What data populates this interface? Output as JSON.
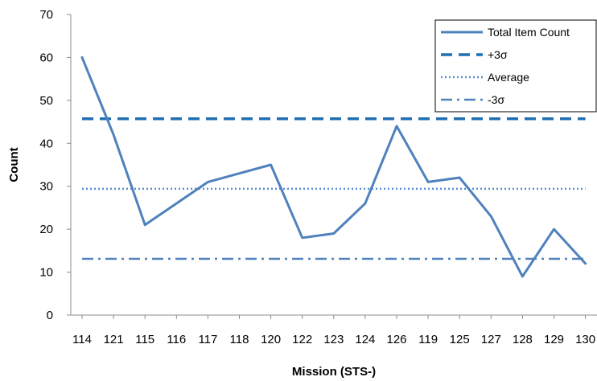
{
  "chart_data": {
    "type": "line",
    "title": "",
    "xlabel": "Mission (STS-)",
    "ylabel": "Count",
    "categories": [
      "114",
      "121",
      "115",
      "116",
      "117",
      "118",
      "120",
      "122",
      "123",
      "124",
      "126",
      "119",
      "125",
      "127",
      "128",
      "129",
      "130"
    ],
    "ylim": [
      0,
      70
    ],
    "yticks": [
      0,
      10,
      20,
      30,
      40,
      50,
      60,
      70
    ],
    "grid": false,
    "legend": "top-right",
    "series": [
      {
        "name": "Total Item Count",
        "style": "solid",
        "color": "#4f81bd",
        "values": [
          60,
          42,
          21,
          26,
          31,
          33,
          35,
          18,
          19,
          26,
          44,
          31,
          32,
          23,
          9,
          20,
          12
        ]
      },
      {
        "name": "+3σ",
        "style": "dashed",
        "color": "#1f6fb2",
        "values": [
          45.7,
          45.7,
          45.7,
          45.7,
          45.7,
          45.7,
          45.7,
          45.7,
          45.7,
          45.7,
          45.7,
          45.7,
          45.7,
          45.7,
          45.7,
          45.7,
          45.7
        ]
      },
      {
        "name": "Average",
        "style": "dotted",
        "color": "#5b8fd0",
        "values": [
          29.4,
          29.4,
          29.4,
          29.4,
          29.4,
          29.4,
          29.4,
          29.4,
          29.4,
          29.4,
          29.4,
          29.4,
          29.4,
          29.4,
          29.4,
          29.4,
          29.4
        ]
      },
      {
        "name": "-3σ",
        "style": "dashdot",
        "color": "#4f81bd",
        "values": [
          13.1,
          13.1,
          13.1,
          13.1,
          13.1,
          13.1,
          13.1,
          13.1,
          13.1,
          13.1,
          13.1,
          13.1,
          13.1,
          13.1,
          13.1,
          13.1,
          13.1
        ]
      }
    ]
  }
}
